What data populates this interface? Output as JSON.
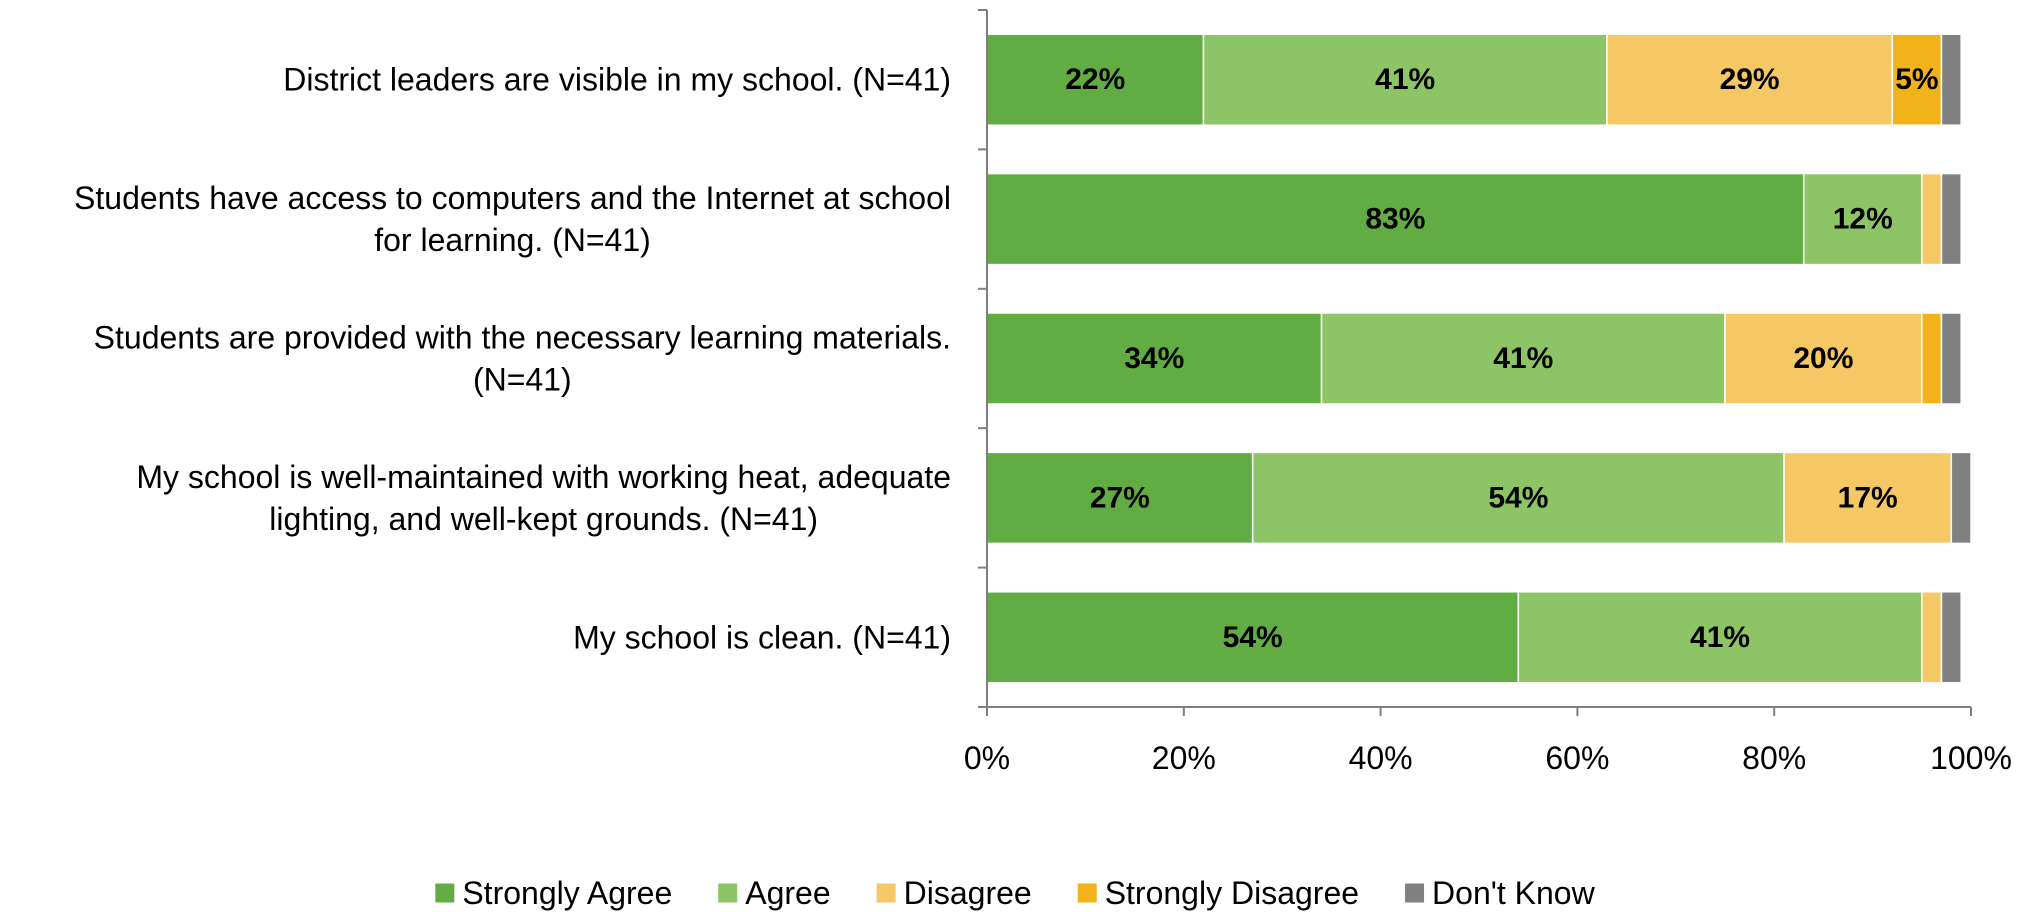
{
  "chart_data": {
    "type": "bar",
    "orientation": "horizontal",
    "stacked": true,
    "categories": [
      "District leaders are visible in my school. (N=41)",
      "Students have access to computers and the Internet at school for learning. (N=41)",
      "Students are provided with the necessary learning materials. (N=41)",
      "My school is well-maintained with working heat, adequate lighting, and well-kept grounds. (N=41)",
      "My school is clean. (N=41)"
    ],
    "category_lines": [
      [
        "District leaders are visible in my school. (N=41)"
      ],
      [
        "Students have access to computers and the Internet at school",
        "for learning. (N=41)"
      ],
      [
        "Students are provided with the necessary learning materials.",
        "(N=41)"
      ],
      [
        "My school is well-maintained with working heat, adequate",
        "lighting, and well-kept grounds. (N=41)"
      ],
      [
        "My school is clean. (N=41)"
      ]
    ],
    "series": [
      {
        "name": "Strongly Agree",
        "color": "#62ac44",
        "values": [
          22,
          83,
          34,
          27,
          54
        ],
        "labels": [
          "22%",
          "83%",
          "34%",
          "27%",
          "54%"
        ]
      },
      {
        "name": "Agree",
        "color": "#8cc466",
        "values": [
          41,
          12,
          41,
          54,
          41
        ],
        "labels": [
          "41%",
          "12%",
          "41%",
          "54%",
          "41%"
        ]
      },
      {
        "name": "Disagree",
        "color": "#f6c765",
        "values": [
          29,
          2,
          20,
          17,
          2
        ],
        "labels": [
          "29%",
          "",
          "20%",
          "17%",
          ""
        ]
      },
      {
        "name": "Strongly Disagree",
        "color": "#f2b31a",
        "values": [
          5,
          0,
          2,
          0,
          0
        ],
        "labels": [
          "5%",
          "",
          "",
          "",
          ""
        ]
      },
      {
        "name": "Don't Know",
        "color": "#808080",
        "values": [
          2,
          2,
          2,
          2,
          2
        ],
        "labels": [
          "",
          "",
          "",
          "",
          ""
        ]
      }
    ],
    "xlim": [
      0,
      100
    ],
    "xticks": [
      "0%",
      "20%",
      "40%",
      "60%",
      "80%",
      "100%"
    ],
    "xtick_values": [
      0,
      20,
      40,
      60,
      80,
      100
    ],
    "title": "",
    "xlabel": "",
    "ylabel": "",
    "grid": false,
    "legend_position": "bottom"
  }
}
